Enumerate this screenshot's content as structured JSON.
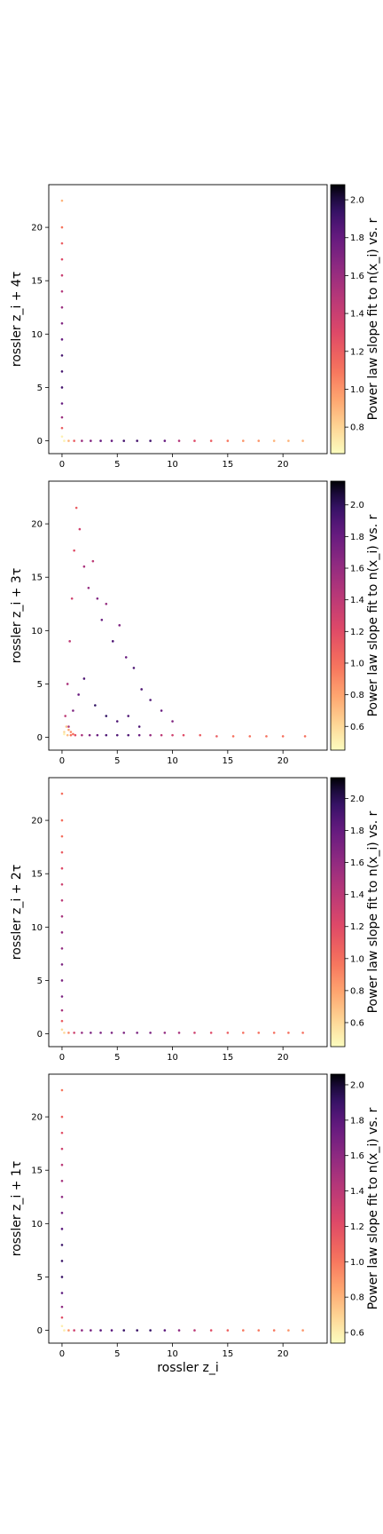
{
  "chart_data": [
    {
      "type": "scatter",
      "ylabel": "rossler z_i + 4τ",
      "xlabel": "",
      "xlim": [
        -1.2,
        24
      ],
      "ylim": [
        -1.2,
        24
      ],
      "xticks": [
        0,
        5,
        10,
        15,
        20
      ],
      "yticks": [
        0,
        5,
        10,
        15,
        20
      ],
      "colorbar": {
        "label": "Power law slope fit to n(x_i) vs. r",
        "ticks": [
          0.8,
          1.0,
          1.2,
          1.4,
          1.6,
          1.8,
          2.0
        ],
        "range": [
          0.66,
          2.08
        ],
        "colormap": "magma_r"
      },
      "series": {
        "x": [
          0.2,
          0.6,
          1.1,
          1.8,
          2.6,
          3.5,
          4.5,
          5.6,
          6.8,
          8.0,
          9.3,
          10.6,
          12.0,
          13.5,
          15.0,
          16.4,
          17.8,
          19.2,
          20.5,
          21.8,
          0.0,
          0.0,
          0.0,
          0.0,
          0.0,
          0.0,
          0.0,
          0.0,
          0.0,
          0.0,
          0.0,
          0.0,
          0.0,
          0.0,
          0.0,
          0.0
        ],
        "y": [
          0.0,
          0.0,
          0.0,
          0.0,
          0.0,
          0.0,
          0.0,
          0.0,
          0.0,
          0.0,
          0.0,
          0.0,
          0.0,
          0.0,
          0.0,
          0.0,
          0.0,
          0.0,
          0.0,
          0.0,
          0.4,
          1.2,
          2.2,
          3.5,
          5.0,
          6.5,
          8.0,
          9.5,
          11.0,
          12.5,
          14.0,
          15.5,
          17.0,
          18.5,
          20.0,
          22.5
        ],
        "c": [
          0.7,
          0.9,
          1.2,
          1.6,
          1.7,
          1.8,
          1.8,
          1.9,
          1.9,
          1.9,
          1.8,
          1.5,
          1.3,
          1.2,
          1.1,
          1.0,
          1.0,
          0.9,
          0.9,
          0.9,
          0.7,
          1.2,
          1.6,
          1.8,
          1.9,
          1.9,
          1.9,
          1.8,
          1.7,
          1.6,
          1.5,
          1.4,
          1.3,
          1.2,
          1.1,
          0.9
        ]
      }
    },
    {
      "type": "scatter",
      "ylabel": "rossler z_i + 3τ",
      "xlabel": "",
      "xlim": [
        -1.2,
        24
      ],
      "ylim": [
        -1.2,
        24
      ],
      "xticks": [
        0,
        5,
        10,
        15,
        20
      ],
      "yticks": [
        0,
        5,
        10,
        15,
        20
      ],
      "colorbar": {
        "label": "Power law slope fit to n(x_i) vs. r",
        "ticks": [
          0.6,
          0.8,
          1.0,
          1.2,
          1.4,
          1.6,
          1.8,
          2.0
        ],
        "range": [
          0.45,
          2.15
        ],
        "colormap": "magma_r"
      },
      "series": {
        "x": [
          0.2,
          0.5,
          0.8,
          1.2,
          1.8,
          2.5,
          3.2,
          4.0,
          5.0,
          6.0,
          7.0,
          8.0,
          9.0,
          10.0,
          11.0,
          12.5,
          14.0,
          15.5,
          17.0,
          18.5,
          20.0,
          22.0,
          0.3,
          0.5,
          0.7,
          0.9,
          1.1,
          1.3,
          1.6,
          2.0,
          2.4,
          2.8,
          3.2,
          3.6,
          4.0,
          4.6,
          5.2,
          5.8,
          6.5,
          7.2,
          8.0,
          9.0,
          10.0,
          0.6,
          1.0,
          1.5,
          2.0,
          3.0,
          4.0,
          5.0,
          6.0,
          7.0,
          0.2,
          0.4,
          0.6,
          0.8,
          1.0
        ],
        "y": [
          0.3,
          0.2,
          0.2,
          0.2,
          0.2,
          0.2,
          0.2,
          0.2,
          0.2,
          0.2,
          0.2,
          0.2,
          0.2,
          0.2,
          0.2,
          0.2,
          0.1,
          0.1,
          0.1,
          0.1,
          0.1,
          0.1,
          2.0,
          5.0,
          9.0,
          13.0,
          17.5,
          21.5,
          19.5,
          16.0,
          14.0,
          16.5,
          13.0,
          11.0,
          12.5,
          9.0,
          10.5,
          7.5,
          6.5,
          4.5,
          3.5,
          2.5,
          1.5,
          1.0,
          2.5,
          4.0,
          5.5,
          3.0,
          2.0,
          1.5,
          2.0,
          1.0,
          0.5,
          1.0,
          0.7,
          0.5,
          0.3
        ],
        "c": [
          0.5,
          0.7,
          1.0,
          1.2,
          1.5,
          1.7,
          1.8,
          1.9,
          1.9,
          1.9,
          1.8,
          1.6,
          1.4,
          1.3,
          1.2,
          1.1,
          1.1,
          1.0,
          1.0,
          1.0,
          1.0,
          1.0,
          1.4,
          1.5,
          1.4,
          1.3,
          1.2,
          1.1,
          1.3,
          1.5,
          1.6,
          1.4,
          1.7,
          1.8,
          1.6,
          1.9,
          1.7,
          1.8,
          1.9,
          1.9,
          1.9,
          1.8,
          1.7,
          1.5,
          1.7,
          1.8,
          1.9,
          2.0,
          2.0,
          1.9,
          1.9,
          1.9,
          0.6,
          0.7,
          0.8,
          0.9,
          1.0
        ]
      }
    },
    {
      "type": "scatter",
      "ylabel": "rossler z_i + 2τ",
      "xlabel": "",
      "xlim": [
        -1.2,
        24
      ],
      "ylim": [
        -1.2,
        24
      ],
      "xticks": [
        0,
        5,
        10,
        15,
        20
      ],
      "yticks": [
        0,
        5,
        10,
        15,
        20
      ],
      "colorbar": {
        "label": "Power law slope fit to n(x_i) vs. r",
        "ticks": [
          0.6,
          0.8,
          1.0,
          1.2,
          1.4,
          1.6,
          1.8,
          2.0
        ],
        "range": [
          0.45,
          2.13
        ],
        "colormap": "magma_r"
      },
      "series": {
        "x": [
          0.2,
          0.6,
          1.1,
          1.8,
          2.6,
          3.5,
          4.5,
          5.6,
          6.8,
          8.0,
          9.3,
          10.6,
          12.0,
          13.5,
          15.0,
          16.4,
          17.8,
          19.2,
          20.5,
          21.8,
          0.0,
          0.0,
          0.0,
          0.0,
          0.0,
          0.0,
          0.0,
          0.0,
          0.0,
          0.0,
          0.0,
          0.0,
          0.0,
          0.0,
          0.0,
          0.0
        ],
        "y": [
          0.1,
          0.1,
          0.1,
          0.1,
          0.1,
          0.1,
          0.1,
          0.1,
          0.1,
          0.1,
          0.1,
          0.1,
          0.1,
          0.1,
          0.1,
          0.1,
          0.1,
          0.1,
          0.1,
          0.1,
          0.4,
          1.2,
          2.2,
          3.5,
          5.0,
          6.5,
          8.0,
          9.5,
          11.0,
          12.5,
          14.0,
          15.5,
          17.0,
          18.5,
          20.0,
          22.5
        ],
        "c": [
          0.6,
          0.9,
          1.3,
          1.6,
          1.7,
          1.7,
          1.7,
          1.7,
          1.7,
          1.7,
          1.6,
          1.5,
          1.3,
          1.2,
          1.1,
          1.0,
          1.0,
          1.0,
          1.0,
          1.0,
          0.6,
          1.1,
          1.5,
          1.7,
          1.7,
          1.7,
          1.6,
          1.6,
          1.5,
          1.4,
          1.3,
          1.2,
          1.1,
          1.0,
          1.0,
          1.0
        ]
      }
    },
    {
      "type": "scatter",
      "ylabel": "rossler z_i + 1τ",
      "xlabel": "rossler z_i",
      "xlim": [
        -1.2,
        24
      ],
      "ylim": [
        -1.2,
        24
      ],
      "xticks": [
        0,
        5,
        10,
        15,
        20
      ],
      "yticks": [
        0,
        5,
        10,
        15,
        20
      ],
      "colorbar": {
        "label": "Power law slope fit to n(x_i) vs. r",
        "ticks": [
          0.6,
          0.8,
          1.0,
          1.2,
          1.4,
          1.6,
          1.8,
          2.0
        ],
        "range": [
          0.54,
          2.06
        ],
        "colormap": "magma_r"
      },
      "series": {
        "x": [
          0.2,
          0.6,
          1.1,
          1.8,
          2.6,
          3.5,
          4.5,
          5.6,
          6.8,
          8.0,
          9.3,
          10.6,
          12.0,
          13.5,
          15.0,
          16.4,
          17.8,
          19.2,
          20.5,
          21.8,
          0.0,
          0.0,
          0.0,
          0.0,
          0.0,
          0.0,
          0.0,
          0.0,
          0.0,
          0.0,
          0.0,
          0.0,
          0.0,
          0.0,
          0.0,
          0.0
        ],
        "y": [
          0.0,
          0.0,
          0.0,
          0.0,
          0.0,
          0.0,
          0.0,
          0.0,
          0.0,
          0.0,
          0.0,
          0.0,
          0.0,
          0.0,
          0.0,
          0.0,
          0.0,
          0.0,
          0.0,
          0.0,
          0.4,
          1.2,
          2.2,
          3.5,
          5.0,
          6.5,
          8.0,
          9.5,
          11.0,
          12.5,
          14.0,
          15.5,
          17.0,
          18.5,
          20.0,
          22.5
        ],
        "c": [
          0.6,
          0.9,
          1.3,
          1.6,
          1.7,
          1.8,
          1.8,
          1.9,
          1.9,
          1.9,
          1.8,
          1.6,
          1.4,
          1.2,
          1.1,
          1.0,
          1.0,
          1.0,
          0.9,
          0.9,
          0.6,
          1.2,
          1.6,
          1.8,
          1.9,
          1.9,
          1.9,
          1.8,
          1.7,
          1.6,
          1.5,
          1.4,
          1.3,
          1.2,
          1.1,
          1.0
        ]
      }
    }
  ]
}
